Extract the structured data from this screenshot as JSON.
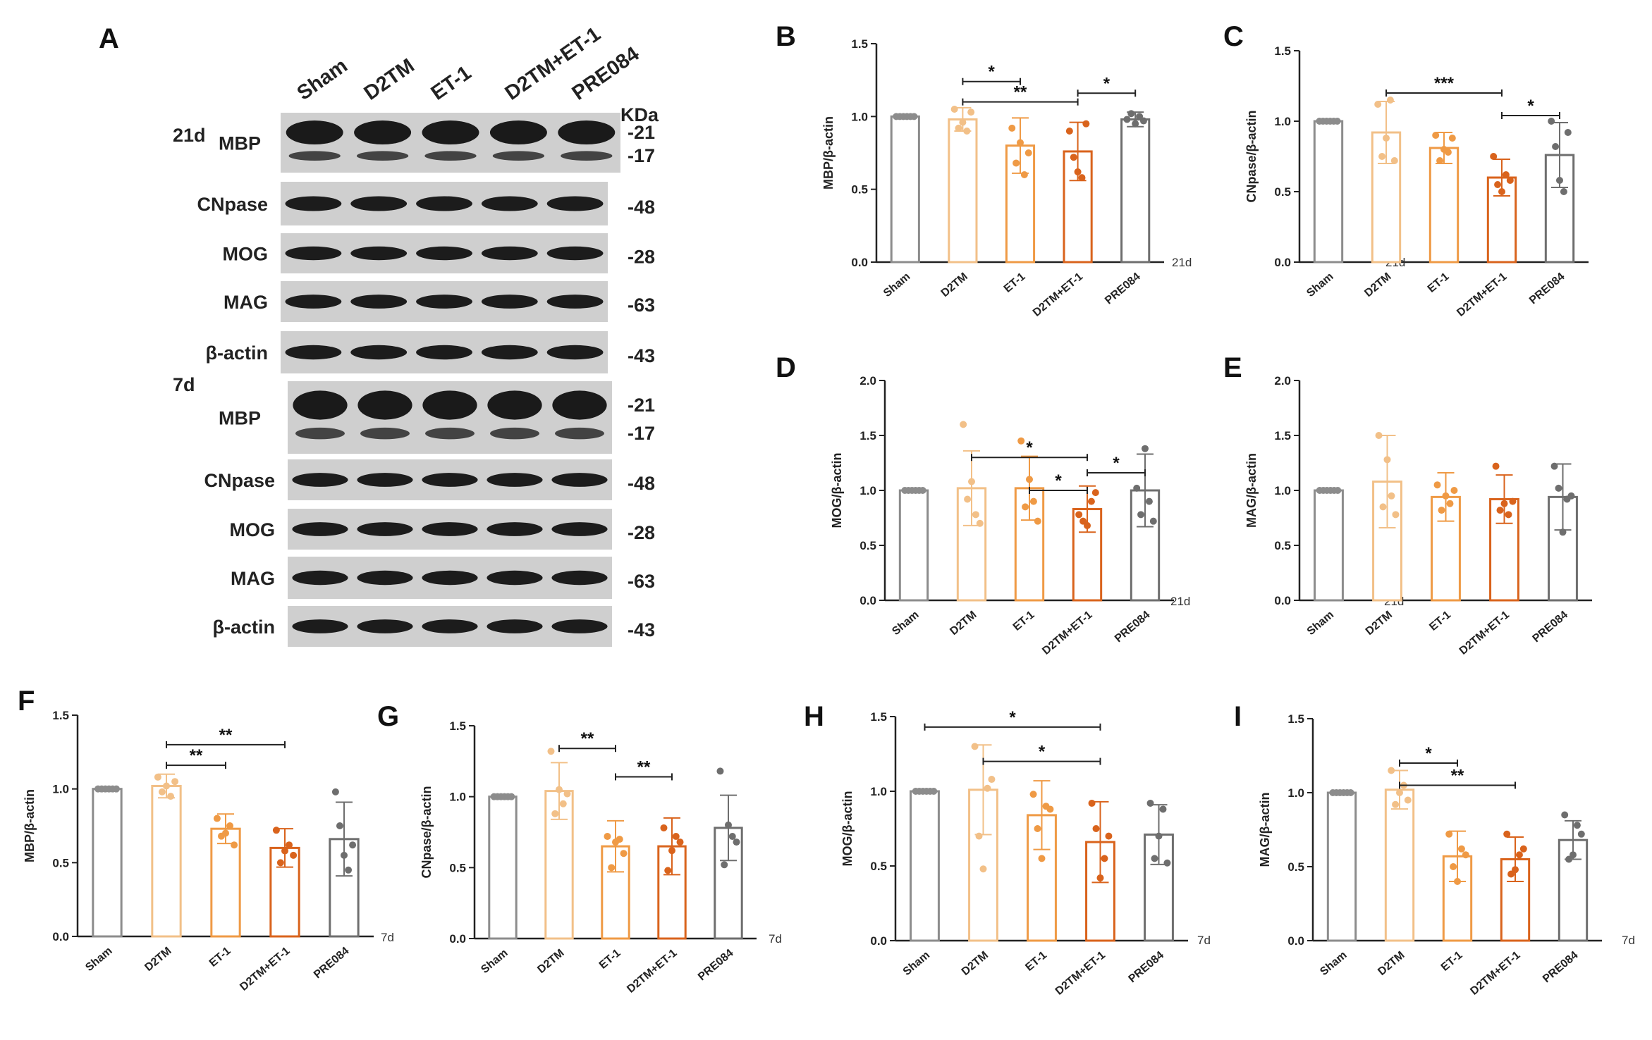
{
  "blot": {
    "panel_label": "A",
    "lanes": [
      "Sham",
      "D2TM",
      "ET-1",
      "D2TM+ET-1",
      "PRE084"
    ],
    "kda_header": "KDa",
    "group_labels": [
      "21d",
      "7d"
    ],
    "rows": [
      {
        "label": "MBP",
        "group": "21d",
        "markers": [
          "-21",
          "-17"
        ]
      },
      {
        "label": "CNpase",
        "markers": [
          "-48"
        ]
      },
      {
        "label": "MOG",
        "markers": [
          "-28"
        ]
      },
      {
        "label": "MAG",
        "markers": [
          "-63"
        ]
      },
      {
        "label": "β-actin",
        "markers": [
          "-43"
        ]
      },
      {
        "label": "MBP",
        "group": "7d",
        "markers": [
          "-21",
          "-17"
        ]
      },
      {
        "label": "CNpase",
        "markers": [
          "-48"
        ]
      },
      {
        "label": "MOG",
        "markers": [
          "-28"
        ]
      },
      {
        "label": "MAG",
        "markers": [
          "-63"
        ]
      },
      {
        "label": "β-actin",
        "markers": [
          "-43"
        ]
      }
    ]
  },
  "colors": {
    "Sham": "#8c8c8c",
    "D2TM": "#f2c088",
    "ET-1": "#ef9a45",
    "D2TM+ET-1": "#d9631c",
    "PRE084": "#6e6e6e"
  },
  "chart_data": [
    {
      "panel": "B",
      "type": "bar",
      "ylabel": "MBP/β-actin",
      "timepoint": "21d",
      "categories": [
        "Sham",
        "D2TM",
        "ET-1",
        "D2TM+ET-1",
        "PRE084"
      ],
      "yticks": [
        "0.0",
        "0.5",
        "1.0",
        "1.5"
      ],
      "ylim": [
        0,
        1.5
      ],
      "values": [
        1.0,
        0.98,
        0.8,
        0.76,
        0.98
      ],
      "errors": [
        0,
        0.08,
        0.19,
        0.2,
        0.05
      ],
      "points": [
        [
          1,
          1,
          1,
          1,
          1,
          1
        ],
        [
          1.05,
          0.92,
          0.96,
          0.9,
          1.03
        ],
        [
          0.92,
          0.68,
          0.82,
          0.6,
          0.75
        ],
        [
          0.9,
          0.72,
          0.62,
          0.58,
          0.95
        ],
        [
          0.98,
          1.02,
          0.95,
          1.0,
          0.97
        ]
      ],
      "sig": [
        {
          "from": 1,
          "to": 2,
          "label": "*",
          "y": 1.24
        },
        {
          "from": 1,
          "to": 3,
          "label": "**",
          "y": 1.1
        },
        {
          "from": 3,
          "to": 4,
          "label": "*",
          "y": 1.16
        }
      ]
    },
    {
      "panel": "C",
      "type": "bar",
      "ylabel": "CNpase/β-actin",
      "timepoint": "21d",
      "categories": [
        "Sham",
        "D2TM",
        "ET-1",
        "D2TM+ET-1",
        "PRE084"
      ],
      "yticks": [
        "0.0",
        "0.5",
        "1.0",
        "1.5"
      ],
      "ylim": [
        0,
        1.5
      ],
      "values": [
        1.0,
        0.92,
        0.81,
        0.6,
        0.76
      ],
      "errors": [
        0,
        0.22,
        0.11,
        0.13,
        0.23
      ],
      "points": [
        [
          1,
          1,
          1,
          1,
          1,
          1
        ],
        [
          1.12,
          0.75,
          0.88,
          1.15,
          0.72
        ],
        [
          0.9,
          0.72,
          0.8,
          0.78,
          0.88
        ],
        [
          0.75,
          0.55,
          0.5,
          0.62,
          0.58
        ],
        [
          1.0,
          0.82,
          0.58,
          0.5,
          0.92
        ]
      ],
      "sig": [
        {
          "from": 1,
          "to": 3,
          "label": "***",
          "y": 1.2
        },
        {
          "from": 3,
          "to": 4,
          "label": "*",
          "y": 1.04
        }
      ]
    },
    {
      "panel": "D",
      "type": "bar",
      "ylabel": "MOG/β-actin",
      "timepoint": "21d",
      "categories": [
        "Sham",
        "D2TM",
        "ET-1",
        "D2TM+ET-1",
        "PRE084"
      ],
      "yticks": [
        "0.0",
        "0.5",
        "1.0",
        "1.5",
        "2.0"
      ],
      "ylim": [
        0,
        2.0
      ],
      "values": [
        1.0,
        1.02,
        1.02,
        0.83,
        1.0
      ],
      "errors": [
        0,
        0.34,
        0.29,
        0.21,
        0.33
      ],
      "points": [
        [
          1,
          1,
          1,
          1,
          1,
          1
        ],
        [
          1.6,
          0.92,
          1.08,
          0.78,
          0.7
        ],
        [
          1.45,
          0.85,
          1.1,
          0.9,
          0.72
        ],
        [
          0.78,
          0.72,
          0.68,
          0.9,
          0.98
        ],
        [
          1.02,
          0.78,
          1.38,
          0.9,
          0.72
        ]
      ],
      "sig": [
        {
          "from": 1,
          "to": 3,
          "label": "*",
          "y": 1.3
        },
        {
          "from": 2,
          "to": 3,
          "label": "*",
          "y": 1.0
        },
        {
          "from": 3,
          "to": 4,
          "label": "*",
          "y": 1.16
        }
      ]
    },
    {
      "panel": "E",
      "type": "bar",
      "ylabel": "MAG/β-actin",
      "timepoint": "21d",
      "categories": [
        "Sham",
        "D2TM",
        "ET-1",
        "D2TM+ET-1",
        "PRE084"
      ],
      "yticks": [
        "0.0",
        "0.5",
        "1.0",
        "1.5",
        "2.0"
      ],
      "ylim": [
        0,
        2.0
      ],
      "values": [
        1.0,
        1.08,
        0.94,
        0.92,
        0.94
      ],
      "errors": [
        0,
        0.42,
        0.22,
        0.22,
        0.3
      ],
      "points": [
        [
          1,
          1,
          1,
          1,
          1,
          1
        ],
        [
          1.5,
          0.85,
          1.28,
          0.95,
          0.78
        ],
        [
          1.05,
          0.82,
          0.95,
          0.88,
          1.0
        ],
        [
          1.22,
          0.82,
          0.88,
          0.78,
          0.9
        ],
        [
          1.22,
          1.02,
          0.62,
          0.92,
          0.95
        ]
      ],
      "sig": []
    },
    {
      "panel": "F",
      "type": "bar",
      "ylabel": "MBP/β-actin",
      "timepoint": "7d",
      "categories": [
        "Sham",
        "D2TM",
        "ET-1",
        "D2TM+ET-1",
        "PRE084"
      ],
      "yticks": [
        "0.0",
        "0.5",
        "1.0",
        "1.5"
      ],
      "ylim": [
        0,
        1.5
      ],
      "values": [
        1.0,
        1.02,
        0.73,
        0.6,
        0.66
      ],
      "errors": [
        0,
        0.08,
        0.1,
        0.13,
        0.25
      ],
      "points": [
        [
          1,
          1,
          1,
          1,
          1,
          1
        ],
        [
          1.08,
          0.98,
          1.02,
          0.95,
          1.05
        ],
        [
          0.8,
          0.68,
          0.7,
          0.75,
          0.62
        ],
        [
          0.72,
          0.5,
          0.58,
          0.62,
          0.55
        ],
        [
          0.98,
          0.75,
          0.55,
          0.45,
          0.62
        ]
      ],
      "sig": [
        {
          "from": 1,
          "to": 2,
          "label": "**",
          "y": 1.16
        },
        {
          "from": 1,
          "to": 3,
          "label": "**",
          "y": 1.3
        }
      ]
    },
    {
      "panel": "G",
      "type": "bar",
      "ylabel": "CNpase/β-actin",
      "timepoint": "7d",
      "categories": [
        "Sham",
        "D2TM",
        "ET-1",
        "D2TM+ET-1",
        "PRE084"
      ],
      "yticks": [
        "0.0",
        "0.5",
        "1.0",
        "1.5"
      ],
      "ylim": [
        0,
        1.5
      ],
      "values": [
        1.0,
        1.04,
        0.65,
        0.65,
        0.78
      ],
      "errors": [
        0,
        0.2,
        0.18,
        0.2,
        0.23
      ],
      "points": [
        [
          1,
          1,
          1,
          1,
          1,
          1
        ],
        [
          1.32,
          0.88,
          1.05,
          0.95,
          1.02
        ],
        [
          0.72,
          0.5,
          0.68,
          0.7,
          0.6
        ],
        [
          0.78,
          0.48,
          0.62,
          0.72,
          0.68
        ],
        [
          1.18,
          0.52,
          0.8,
          0.72,
          0.68
        ]
      ],
      "sig": [
        {
          "from": 1,
          "to": 2,
          "label": "**",
          "y": 1.34
        },
        {
          "from": 2,
          "to": 3,
          "label": "**",
          "y": 1.14
        }
      ]
    },
    {
      "panel": "H",
      "type": "bar",
      "ylabel": "MOG/β-actin",
      "timepoint": "7d",
      "categories": [
        "Sham",
        "D2TM",
        "ET-1",
        "D2TM+ET-1",
        "PRE084"
      ],
      "yticks": [
        "0.0",
        "0.5",
        "1.0",
        "1.5"
      ],
      "ylim": [
        0,
        1.5
      ],
      "values": [
        1.0,
        1.01,
        0.84,
        0.66,
        0.71
      ],
      "errors": [
        0,
        0.3,
        0.23,
        0.27,
        0.2
      ],
      "points": [
        [
          1,
          1,
          1,
          1,
          1,
          1
        ],
        [
          1.3,
          0.7,
          0.48,
          1.02,
          1.08
        ],
        [
          0.98,
          0.75,
          0.55,
          0.9,
          0.88
        ],
        [
          0.92,
          0.75,
          0.42,
          0.55,
          0.7
        ],
        [
          0.92,
          0.55,
          0.7,
          0.88,
          0.52
        ]
      ],
      "sig": [
        {
          "from": 0,
          "to": 3,
          "label": "*",
          "y": 1.43
        },
        {
          "from": 1,
          "to": 3,
          "label": "*",
          "y": 1.2
        }
      ]
    },
    {
      "panel": "I",
      "type": "bar",
      "ylabel": "MAG/β-actin",
      "timepoint": "7d",
      "categories": [
        "Sham",
        "D2TM",
        "ET-1",
        "D2TM+ET-1",
        "PRE084"
      ],
      "yticks": [
        "0.0",
        "0.5",
        "1.0",
        "1.5"
      ],
      "ylim": [
        0,
        1.5
      ],
      "values": [
        1.0,
        1.02,
        0.57,
        0.55,
        0.68
      ],
      "errors": [
        0,
        0.13,
        0.17,
        0.15,
        0.13
      ],
      "points": [
        [
          1,
          1,
          1,
          1,
          1,
          1
        ],
        [
          1.15,
          0.92,
          1.0,
          1.05,
          0.95
        ],
        [
          0.72,
          0.5,
          0.4,
          0.62,
          0.58
        ],
        [
          0.72,
          0.45,
          0.48,
          0.58,
          0.62
        ],
        [
          0.85,
          0.55,
          0.58,
          0.78,
          0.72
        ]
      ],
      "sig": [
        {
          "from": 1,
          "to": 2,
          "label": "*",
          "y": 1.2
        },
        {
          "from": 1,
          "to": 3,
          "label": "**",
          "y": 1.05
        }
      ]
    }
  ]
}
